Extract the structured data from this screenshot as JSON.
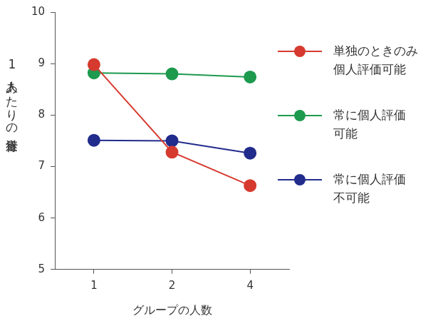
{
  "chart_data": {
    "type": "line",
    "x_label": "グループの人数",
    "y_label": "1人あたりの遂行量",
    "categories": [
      "1",
      "2",
      "4"
    ],
    "series": [
      {
        "name": "単独のときのみ\n個人評価可能",
        "color": "#d63a2f",
        "marker": "circle",
        "line_style": "solid",
        "values": [
          8.98,
          7.28,
          6.63
        ]
      },
      {
        "name": "常に個人評価\n可能",
        "color": "#1e9a4e",
        "marker": "circle",
        "line_style": "solid",
        "values": [
          8.82,
          8.8,
          8.74
        ]
      },
      {
        "name": "常に個人評価\n不可能",
        "color": "#222c8c",
        "marker": "circle",
        "line_style": "solid",
        "values": [
          7.51,
          7.5,
          7.26
        ]
      }
    ],
    "ylim": [
      5,
      10
    ],
    "yticks": [
      5,
      6,
      7,
      8,
      9,
      10
    ],
    "grid": false,
    "legend": "right"
  }
}
